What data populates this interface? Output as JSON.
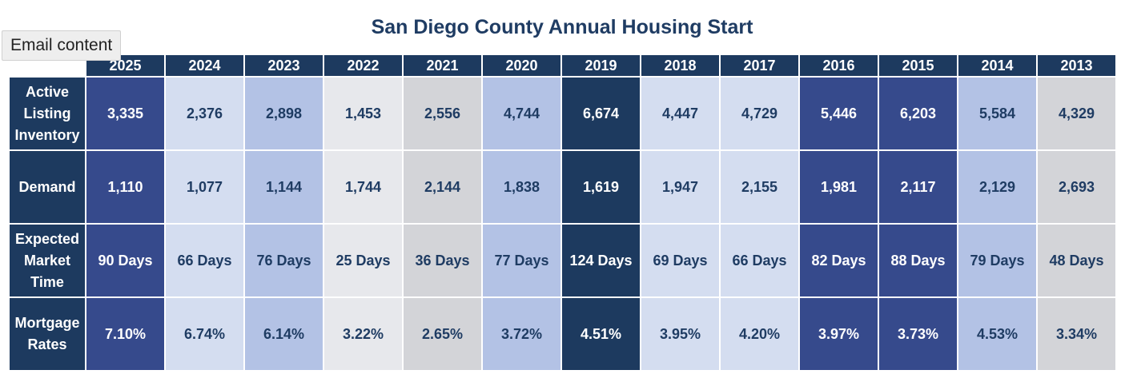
{
  "title": "San Diego County Annual Housing Start",
  "tooltip": "Email content",
  "years": [
    "2025",
    "2024",
    "2023",
    "2022",
    "2021",
    "2020",
    "2019",
    "2018",
    "2017",
    "2016",
    "2015",
    "2014",
    "2013"
  ],
  "column_colors": [
    "blue",
    "pale",
    "mid",
    "light",
    "grey",
    "mid",
    "navy",
    "pale",
    "pale",
    "blue",
    "blue",
    "mid",
    "grey"
  ],
  "color_palette": {
    "blue": "#364a8c",
    "pale": "#d4ddf0",
    "mid": "#b3c2e5",
    "light": "#e7e8ec",
    "grey": "#d3d4d8",
    "navy": "#1d3a5f"
  },
  "rows": [
    {
      "label": "Active Listing Inventory",
      "values": [
        "3,335",
        "2,376",
        "2,898",
        "1,453",
        "2,556",
        "4,744",
        "6,674",
        "4,447",
        "4,729",
        "5,446",
        "6,203",
        "5,584",
        "4,329"
      ]
    },
    {
      "label": "Demand",
      "values": [
        "1,110",
        "1,077",
        "1,144",
        "1,744",
        "2,144",
        "1,838",
        "1,619",
        "1,947",
        "2,155",
        "1,981",
        "2,117",
        "2,129",
        "2,693"
      ]
    },
    {
      "label": "Expected Market Time",
      "values": [
        "90 Days",
        "66 Days",
        "76 Days",
        "25 Days",
        "36 Days",
        "77 Days",
        "124 Days",
        "69 Days",
        "66 Days",
        "82 Days",
        "88 Days",
        "79 Days",
        "48 Days"
      ]
    },
    {
      "label": "Mortgage Rates",
      "values": [
        "7.10%",
        "6.74%",
        "6.14%",
        "3.22%",
        "2.65%",
        "3.72%",
        "4.51%",
        "3.95%",
        "4.20%",
        "3.97%",
        "3.73%",
        "4.53%",
        "3.34%"
      ]
    }
  ]
}
